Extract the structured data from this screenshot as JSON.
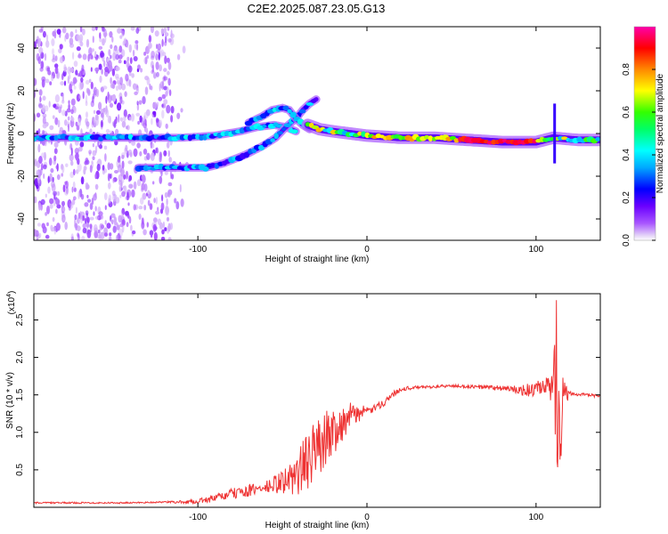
{
  "title": "C2E2.2025.087.23.05.G13",
  "colors": {
    "snr_line": "#ee3333",
    "axis": "#000000",
    "background": "#ffffff"
  },
  "chart_data": [
    {
      "type": "heatmap",
      "name": "spectrogram",
      "xlabel": "Height of straight line (km)",
      "ylabel": "Frequency (Hz)",
      "xlim": [
        -197,
        138
      ],
      "ylim": [
        -50,
        50
      ],
      "x_ticks": [
        -100,
        0,
        100
      ],
      "x_tick_labels": [
        "-100",
        "0",
        "100"
      ],
      "y_ticks": [
        -40,
        -20,
        0,
        20,
        40
      ],
      "y_tick_labels": [
        "-40",
        "-20",
        "0",
        "20",
        "40"
      ],
      "colorbar": {
        "label": "Normalized spectral amplitude",
        "range": [
          0,
          1
        ],
        "ticks": [
          0.0,
          0.2,
          0.4,
          0.6,
          0.8
        ],
        "tick_labels": [
          "0.0",
          "0.2",
          "0.4",
          "0.6",
          "0.8"
        ]
      },
      "tracks": [
        {
          "points": [
            [
              -197,
              -2
            ],
            [
              -170,
              -2
            ],
            [
              -150,
              -2
            ],
            [
              -130,
              -2
            ],
            [
              -110,
              -2
            ],
            [
              -90,
              -1
            ],
            [
              -75,
              1
            ],
            [
              -65,
              3
            ],
            [
              -55,
              4
            ],
            [
              -48,
              3
            ],
            [
              -42,
              1
            ]
          ],
          "amplitude": 0.35
        },
        {
          "points": [
            [
              -135,
              -16
            ],
            [
              -120,
              -16
            ],
            [
              -110,
              -16
            ],
            [
              -95,
              -16
            ],
            [
              -85,
              -14
            ],
            [
              -72,
              -10
            ],
            [
              -62,
              -6
            ],
            [
              -54,
              -2
            ],
            [
              -48,
              3
            ],
            [
              -42,
              7
            ],
            [
              -38,
              11
            ],
            [
              -34,
              14
            ],
            [
              -30,
              16
            ]
          ],
          "amplitude": 0.32
        },
        {
          "points": [
            [
              -70,
              5
            ],
            [
              -62,
              8
            ],
            [
              -56,
              11
            ],
            [
              -50,
              12
            ],
            [
              -46,
              11
            ],
            [
              -42,
              7
            ],
            [
              -38,
              4
            ],
            [
              -34,
              2
            ]
          ],
          "amplitude": 0.35
        },
        {
          "points": [
            [
              -35,
              4
            ],
            [
              -28,
              2
            ],
            [
              -20,
              1
            ],
            [
              -10,
              0
            ],
            [
              0,
              -1
            ],
            [
              20,
              -2
            ],
            [
              40,
              -2
            ],
            [
              60,
              -3
            ],
            [
              80,
              -4
            ],
            [
              100,
              -4
            ],
            [
              110,
              -2
            ],
            [
              125,
              -3
            ],
            [
              138,
              -3
            ]
          ],
          "amplitude": 0.62
        }
      ]
    },
    {
      "type": "line",
      "name": "snr",
      "xlabel": "Height of straight line (km)",
      "ylabel": "SNR (10 * v/v)",
      "y_multiplier": "(x10^4)",
      "xlim": [
        -197,
        138
      ],
      "ylim": [
        0,
        2.85
      ],
      "x_ticks": [
        -100,
        0,
        100
      ],
      "x_tick_labels": [
        "-100",
        "0",
        "100"
      ],
      "y_ticks": [
        0.5,
        1.0,
        1.5,
        2.0,
        2.5
      ],
      "y_tick_labels": [
        "0.5",
        "1.0",
        "1.5",
        "2.0",
        "2.5"
      ],
      "series": [
        {
          "x": [
            -197,
            -180,
            -160,
            -140,
            -120,
            -110,
            -100,
            -90,
            -80,
            -70,
            -60,
            -55,
            -50,
            -45,
            -40,
            -35,
            -30,
            -25,
            -20,
            -15,
            -10,
            -5,
            0,
            5,
            10,
            15,
            20,
            30,
            40,
            50,
            60,
            70,
            80,
            90,
            95,
            100,
            105,
            110,
            112,
            114,
            116,
            120,
            130,
            138
          ],
          "y": [
            0.06,
            0.06,
            0.06,
            0.06,
            0.07,
            0.07,
            0.08,
            0.12,
            0.18,
            0.22,
            0.26,
            0.3,
            0.34,
            0.38,
            0.48,
            0.62,
            0.78,
            0.92,
            1.02,
            1.12,
            1.2,
            1.26,
            1.28,
            1.32,
            1.4,
            1.5,
            1.58,
            1.6,
            1.61,
            1.62,
            1.61,
            1.6,
            1.59,
            1.56,
            1.56,
            1.57,
            1.58,
            1.6,
            1.75,
            1.5,
            1.58,
            1.52,
            1.5,
            1.48
          ],
          "noise": [
            0.01,
            0.01,
            0.01,
            0.01,
            0.01,
            0.02,
            0.03,
            0.05,
            0.07,
            0.08,
            0.09,
            0.12,
            0.16,
            0.22,
            0.35,
            0.38,
            0.4,
            0.38,
            0.32,
            0.26,
            0.2,
            0.12,
            0.06,
            0.05,
            0.05,
            0.04,
            0.03,
            0.02,
            0.02,
            0.02,
            0.02,
            0.03,
            0.04,
            0.06,
            0.09,
            0.11,
            0.13,
            0.2,
            1.1,
            1.25,
            0.45,
            0.03,
            0.02,
            0.02
          ]
        }
      ]
    }
  ]
}
